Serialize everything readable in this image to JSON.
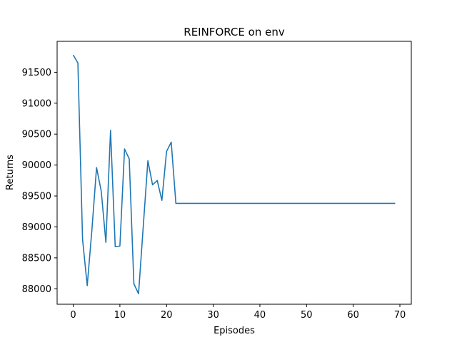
{
  "chart_data": {
    "type": "line",
    "title": "REINFORCE on env",
    "xlabel": "Episodes",
    "ylabel": "Returns",
    "xlim": [
      -3.45,
      72.45
    ],
    "ylim": [
      87750,
      92000
    ],
    "xticks": [
      0,
      10,
      20,
      30,
      40,
      50,
      60,
      70
    ],
    "xtick_labels": [
      "0",
      "10",
      "20",
      "30",
      "40",
      "50",
      "60",
      "70"
    ],
    "yticks": [
      88000,
      88500,
      89000,
      89500,
      90000,
      90500,
      91000,
      91500
    ],
    "ytick_labels": [
      "88000",
      "88500",
      "89000",
      "89500",
      "90000",
      "90500",
      "91000",
      "91500"
    ],
    "grid": false,
    "series": [
      {
        "color": "#1f77b4",
        "x": [
          0,
          1,
          2,
          3,
          4,
          5,
          6,
          7,
          8,
          9,
          10,
          11,
          12,
          13,
          14,
          15,
          16,
          17,
          18,
          19,
          20,
          21,
          22,
          23,
          24,
          25,
          26,
          27,
          28,
          29,
          30,
          31,
          32,
          33,
          34,
          35,
          36,
          37,
          38,
          39,
          40,
          41,
          42,
          43,
          44,
          45,
          46,
          47,
          48,
          49,
          50,
          51,
          52,
          53,
          54,
          55,
          56,
          57,
          58,
          59,
          60,
          61,
          62,
          63,
          64,
          65,
          66,
          67,
          68,
          69
        ],
        "y": [
          91780,
          91650,
          88800,
          88050,
          88950,
          89960,
          89580,
          88750,
          90560,
          88680,
          88690,
          90260,
          90100,
          88080,
          87920,
          89000,
          90070,
          89680,
          89750,
          89430,
          90220,
          90370,
          89380,
          89380,
          89380,
          89380,
          89380,
          89380,
          89380,
          89380,
          89380,
          89380,
          89380,
          89380,
          89380,
          89380,
          89380,
          89380,
          89380,
          89380,
          89380,
          89380,
          89380,
          89380,
          89380,
          89380,
          89380,
          89380,
          89380,
          89380,
          89380,
          89380,
          89380,
          89380,
          89380,
          89380,
          89380,
          89380,
          89380,
          89380,
          89380,
          89380,
          89380,
          89380,
          89380,
          89380,
          89380,
          89380,
          89380,
          89380
        ]
      }
    ]
  }
}
